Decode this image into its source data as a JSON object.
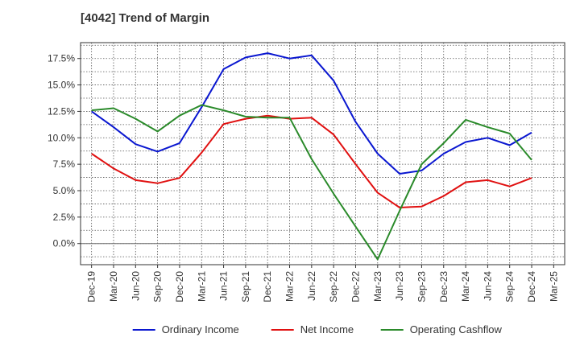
{
  "chart_data": {
    "type": "line",
    "title": "[4042]  Trend of Margin",
    "xlabel": "",
    "ylabel": "",
    "x": [
      "Dec-19",
      "Mar-20",
      "Jun-20",
      "Sep-20",
      "Dec-20",
      "Mar-21",
      "Jun-21",
      "Sep-21",
      "Dec-21",
      "Mar-22",
      "Jun-22",
      "Sep-22",
      "Dec-22",
      "Mar-23",
      "Jun-23",
      "Sep-23",
      "Dec-23",
      "Mar-24",
      "Jun-24",
      "Sep-24",
      "Dec-24",
      "Mar-25"
    ],
    "ylim": [
      -2.0,
      19.0
    ],
    "yticks": [
      0.0,
      2.5,
      5.0,
      7.5,
      10.0,
      12.5,
      15.0,
      17.5
    ],
    "ytick_labels": [
      "0.0%",
      "2.5%",
      "5.0%",
      "7.5%",
      "10.0%",
      "12.5%",
      "15.0%",
      "17.5%"
    ],
    "grid": true,
    "legend_position": "bottom",
    "series": [
      {
        "name": "Ordinary Income",
        "color": "#0a17d0",
        "values": [
          12.5,
          11.0,
          9.4,
          8.7,
          9.5,
          12.9,
          16.5,
          17.6,
          18.0,
          17.5,
          17.8,
          15.4,
          11.5,
          8.5,
          6.6,
          6.9,
          8.5,
          9.6,
          10.0,
          9.3,
          10.5,
          null
        ]
      },
      {
        "name": "Net Income",
        "color": "#e01010",
        "values": [
          8.5,
          7.1,
          6.0,
          5.7,
          6.2,
          8.6,
          11.3,
          11.8,
          12.1,
          11.8,
          11.9,
          10.3,
          7.5,
          4.8,
          3.4,
          3.5,
          4.5,
          5.8,
          6.0,
          5.4,
          6.2,
          null
        ]
      },
      {
        "name": "Operating Cashflow",
        "color": "#2a8a2a",
        "values": [
          12.6,
          12.8,
          11.8,
          10.6,
          12.1,
          13.1,
          12.6,
          12.0,
          11.9,
          11.9,
          8.0,
          4.7,
          1.6,
          -1.5,
          3.1,
          7.5,
          9.5,
          11.7,
          11.0,
          10.4,
          7.9,
          null
        ]
      }
    ]
  }
}
